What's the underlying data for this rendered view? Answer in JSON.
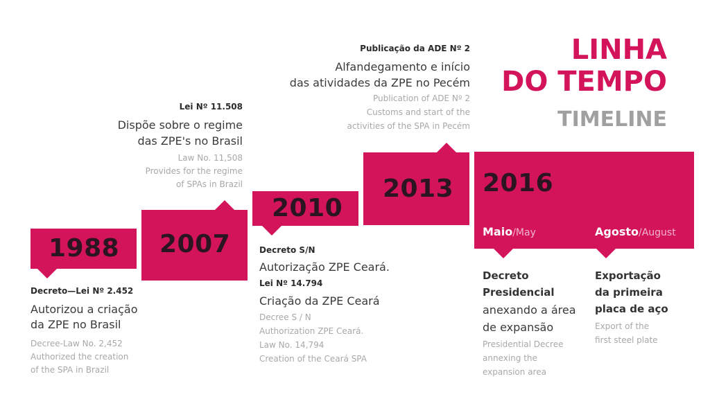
{
  "title": {
    "line1": "LINHA",
    "line2": "DO TEMPO",
    "sub": "TIMELINE"
  },
  "colors": {
    "accent": "#d4145a",
    "year_text": "#2a1520",
    "secondary_text": "#a8a8a8"
  },
  "events": {
    "e1988": {
      "year": "1988",
      "label": "Decreto—Lei Nº 2.452",
      "pt": [
        "Autorizou a criação",
        "da ZPE no Brasil"
      ],
      "en": [
        "Decree-Law No. 2,452",
        "Authorized the creation",
        "of the SPA in Brazil"
      ]
    },
    "e2007": {
      "year": "2007",
      "label": "Lei Nº 11.508",
      "pt": [
        "Dispõe sobre o regime",
        "das ZPE's no Brasil"
      ],
      "en": [
        "Law No. 11,508",
        "Provides for the regime",
        "of SPAs in Brazil"
      ]
    },
    "e2010": {
      "year": "2010",
      "label1": "Decreto S/N",
      "pt1": "Autorização ZPE Ceará.",
      "label2": "Lei Nº 14.794",
      "pt2": "Criação da ZPE Ceará",
      "en": [
        "Decree S / N",
        "Authorization ZPE Ceará.",
        "Law No. 14,794",
        "Creation of the Ceará SPA"
      ]
    },
    "e2013": {
      "year": "2013",
      "label": "Publicação da ADE Nº 2",
      "pt": [
        "Alfandegamento e início",
        "das atividades da ZPE no Pecém"
      ],
      "en": [
        "Publication of ADE Nº 2",
        "Customs and start of the",
        "activities of the SPA in Pecém"
      ]
    },
    "e2016": {
      "year": "2016",
      "may": {
        "pt": "Maio",
        "en": "/May"
      },
      "august": {
        "pt": "Agosto",
        "en": "/August"
      },
      "may_bold": [
        "Decreto",
        "Presidencial"
      ],
      "may_pt": [
        "anexando a área",
        "de expansão"
      ],
      "may_en": [
        "Presidential Decree",
        "annexing the",
        "expansion area"
      ],
      "aug_bold": [
        "Exportação",
        "da primeira",
        "placa de aço"
      ],
      "aug_en": [
        "Export of the",
        "first steel plate"
      ]
    }
  }
}
